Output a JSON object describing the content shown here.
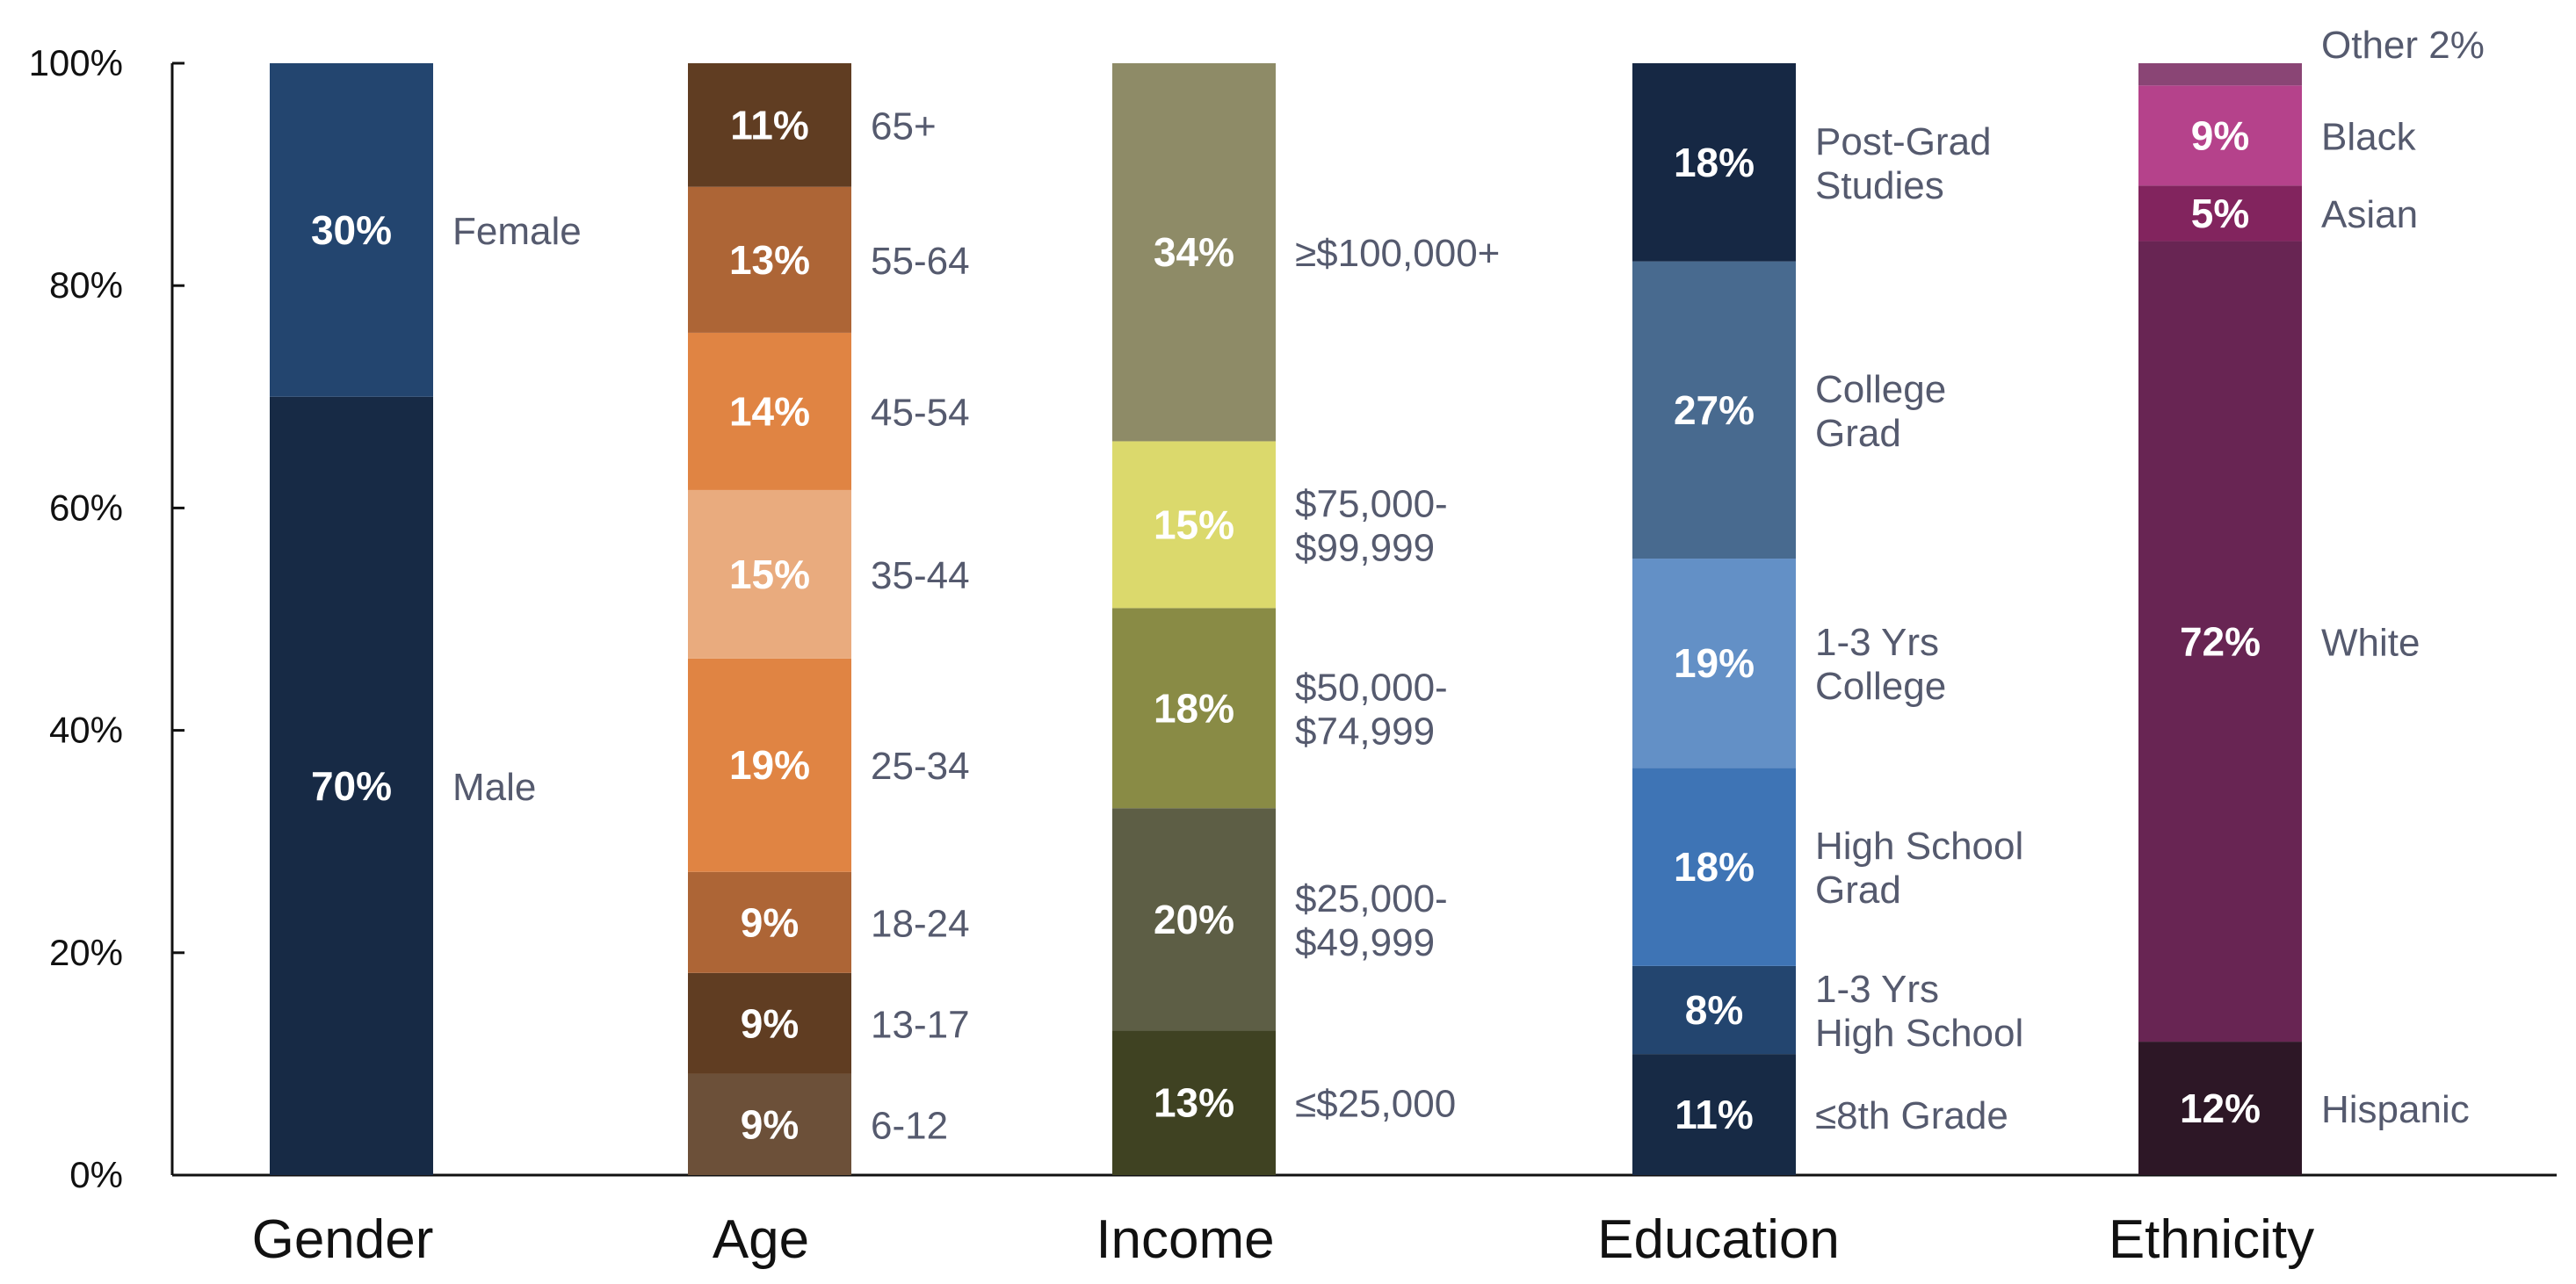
{
  "chart_data": {
    "type": "bar",
    "stacked": true,
    "ylim": [
      0,
      100
    ],
    "y_ticks": [
      "0%",
      "20%",
      "40%",
      "60%",
      "80%",
      "100%"
    ],
    "groups": [
      {
        "name": "Gender",
        "segments": [
          {
            "label": "Male",
            "value": 70,
            "value_label": "70%",
            "color": "#172a45"
          },
          {
            "label": "Female",
            "value": 30,
            "value_label": "30%",
            "color": "#23456f"
          }
        ]
      },
      {
        "name": "Age",
        "segments": [
          {
            "label": "6-12",
            "value": 9,
            "value_label": "9%",
            "color": "#6c5039"
          },
          {
            "label": "13-17",
            "value": 9,
            "value_label": "9%",
            "color": "#603d22"
          },
          {
            "label": "18-24",
            "value": 9,
            "value_label": "9%",
            "color": "#ad6536"
          },
          {
            "label": "25-34",
            "value": 19,
            "value_label": "19%",
            "color": "#e08443"
          },
          {
            "label": "35-44",
            "value": 15,
            "value_label": "15%",
            "color": "#e9ab7e"
          },
          {
            "label": "45-54",
            "value": 14,
            "value_label": "14%",
            "color": "#e08443"
          },
          {
            "label": "55-64",
            "value": 13,
            "value_label": "13%",
            "color": "#ad6536"
          },
          {
            "label": "65+",
            "value": 11,
            "value_label": "11%",
            "color": "#603d22"
          }
        ]
      },
      {
        "name": "Income",
        "segments": [
          {
            "label": "≤$25,000",
            "value": 13,
            "value_label": "13%",
            "color": "#3f4222"
          },
          {
            "label": "$25,000-\n$49,999",
            "value": 20,
            "value_label": "20%",
            "color": "#5d5e45"
          },
          {
            "label": "$50,000-\n$74,999",
            "value": 18,
            "value_label": "18%",
            "color": "#898b45"
          },
          {
            "label": "$75,000-\n$99,999",
            "value": 15,
            "value_label": "15%",
            "color": "#dbd96c"
          },
          {
            "label": "≥$100,000+",
            "value": 34,
            "value_label": "34%",
            "color": "#8e8b67"
          }
        ]
      },
      {
        "name": "Education",
        "segments": [
          {
            "label": "≤8th Grade",
            "value": 11,
            "value_label": "11%",
            "color": "#172a45"
          },
          {
            "label": "1-3 Yrs\nHigh School",
            "value": 8,
            "value_label": "8%",
            "color": "#23456f"
          },
          {
            "label": "High School\nGrad",
            "value": 18,
            "value_label": "18%",
            "color": "#3e74b5"
          },
          {
            "label": "1-3 Yrs\nCollege",
            "value": 19,
            "value_label": "19%",
            "color": "#6390c6"
          },
          {
            "label": "College\nGrad",
            "value": 27,
            "value_label": "27%",
            "color": "#486a8f"
          },
          {
            "label": "Post-Grad\nStudies",
            "value": 18,
            "value_label": "18%",
            "color": "#162844"
          }
        ]
      },
      {
        "name": "Ethnicity",
        "segments": [
          {
            "label": "Hispanic",
            "value": 12,
            "value_label": "12%",
            "color": "#2d1726"
          },
          {
            "label": "White",
            "value": 72,
            "value_label": "72%",
            "color": "#682553"
          },
          {
            "label": "Asian",
            "value": 5,
            "value_label": "5%",
            "color": "#82245e"
          },
          {
            "label": "Black",
            "value": 9,
            "value_label": "9%",
            "color": "#b5428b"
          },
          {
            "label": "Other 2%",
            "value": 2,
            "value_label": "",
            "color": "#8a4575"
          }
        ]
      }
    ]
  }
}
